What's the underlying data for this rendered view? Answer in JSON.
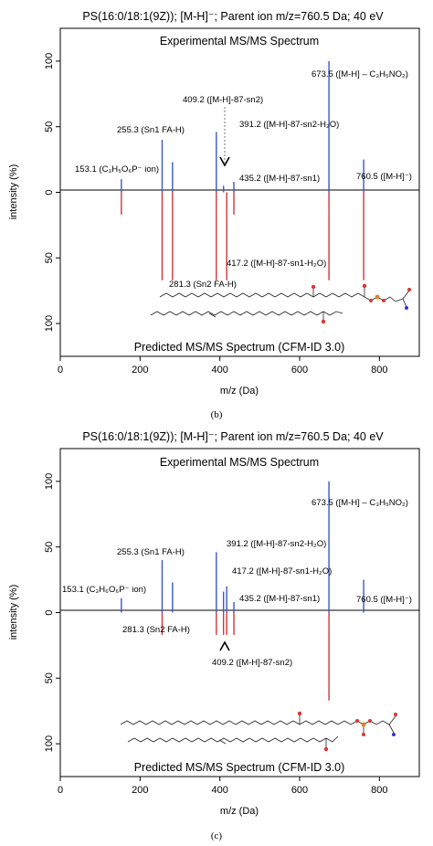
{
  "panels": [
    {
      "caption": "(b)",
      "chart_data": {
        "type": "bar",
        "title": "PS(16:0/18:1(9Z)); [M-H]⁻; Parent ion m/z=760.5 Da; 40 eV",
        "xlabel": "m/z (Da)",
        "ylabel": "intensity (%)",
        "xlim": [
          0,
          900
        ],
        "ylim": [
          -125,
          125
        ],
        "x_ticks": [
          0,
          200,
          400,
          600,
          800
        ],
        "y_ticks": [
          100,
          50,
          0,
          50,
          100
        ],
        "top_label": "Experimental MS/MS Spectrum",
        "bottom_label": "Predicted MS/MS Spectrum (CFM-ID 3.0)",
        "series": [
          {
            "name": "Experimental MS/MS Spectrum",
            "color": "#3a57c4",
            "x": [
              153.1,
              255.3,
              281.3,
              391.2,
              409.2,
              435.2,
              673.5,
              760.5
            ],
            "y": [
              10,
              40,
              23,
              46,
              5,
              8,
              100,
              25
            ]
          },
          {
            "name": "Predicted MS/MS Spectrum (CFM-ID 3.0)",
            "color": "#d1343a",
            "x": [
              153.1,
              255.3,
              281.3,
              391.2,
              417.2,
              435.2,
              673.5,
              760.5
            ],
            "y": [
              -17,
              -67,
              -67,
              -67,
              -67,
              -17,
              -67,
              -67
            ]
          }
        ],
        "annotations": [
          {
            "text": "153.1 (C₃H₅O₆P⁻ ion)"
          },
          {
            "text": "255.3 (Sn1 FA-H)"
          },
          {
            "text": "409.2 ([M-H]-87-sn2)"
          },
          {
            "text": "391.2 ([M-H]-87-sn2-H₂O)"
          },
          {
            "text": "435.2 ([M-H]-87-sn1)"
          },
          {
            "text": "673.5 ([M-H] – C₃H₅NO₂)"
          },
          {
            "text": "760.5 ([M-H]⁻)"
          },
          {
            "text": "417.2 ([M-H]-87-sn1-H₂O)"
          },
          {
            "text": "281.3 (Sn2 FA-H)"
          }
        ]
      }
    },
    {
      "caption": "(c)",
      "chart_data": {
        "type": "bar",
        "title": "PS(16:0/18:1(9Z)); [M-H]⁻; Parent ion m/z=760.5 Da; 40 eV",
        "xlabel": "m/z (Da)",
        "ylabel": "intensity (%)",
        "xlim": [
          0,
          900
        ],
        "ylim": [
          -125,
          125
        ],
        "x_ticks": [
          0,
          200,
          400,
          600,
          800
        ],
        "y_ticks": [
          100,
          50,
          0,
          50,
          100
        ],
        "top_label": "Experimental MS/MS Spectrum",
        "bottom_label": "Predicted MS/MS Spectrum (CFM-ID 3.0)",
        "series": [
          {
            "name": "Experimental MS/MS Spectrum",
            "color": "#3a57c4",
            "x": [
              153.1,
              255.3,
              281.3,
              391.2,
              409.2,
              417.2,
              435.2,
              673.5,
              760.5
            ],
            "y": [
              11,
              40,
              23,
              46,
              16,
              20,
              8,
              100,
              25
            ]
          },
          {
            "name": "Predicted MS/MS Spectrum (CFM-ID 3.0)",
            "color": "#d1343a",
            "x": [
              255.3,
              391.2,
              409.2,
              417.2,
              435.2,
              673.5
            ],
            "y": [
              -17,
              -17,
              -17,
              -17,
              -17,
              -67
            ]
          }
        ],
        "annotations": [
          {
            "text": "673.5 ([M-H] – C₃H₅NO₂)"
          },
          {
            "text": "255.3 (Sn1 FA-H)"
          },
          {
            "text": "391.2 ([M-H]-87-sn2-H₂O)"
          },
          {
            "text": "417.2 ([M-H]-87-sn1-H₂O)"
          },
          {
            "text": "153.1 (C₃H₆O₆P⁻ ion)"
          },
          {
            "text": "435.2 ([M-H]-87-sn1)"
          },
          {
            "text": "760.5 ([M-H]⁻)"
          },
          {
            "text": "281.3 (Sn2 FA-H)"
          },
          {
            "text": "409.2 ([M-H]-87-sn2)"
          }
        ]
      }
    }
  ]
}
